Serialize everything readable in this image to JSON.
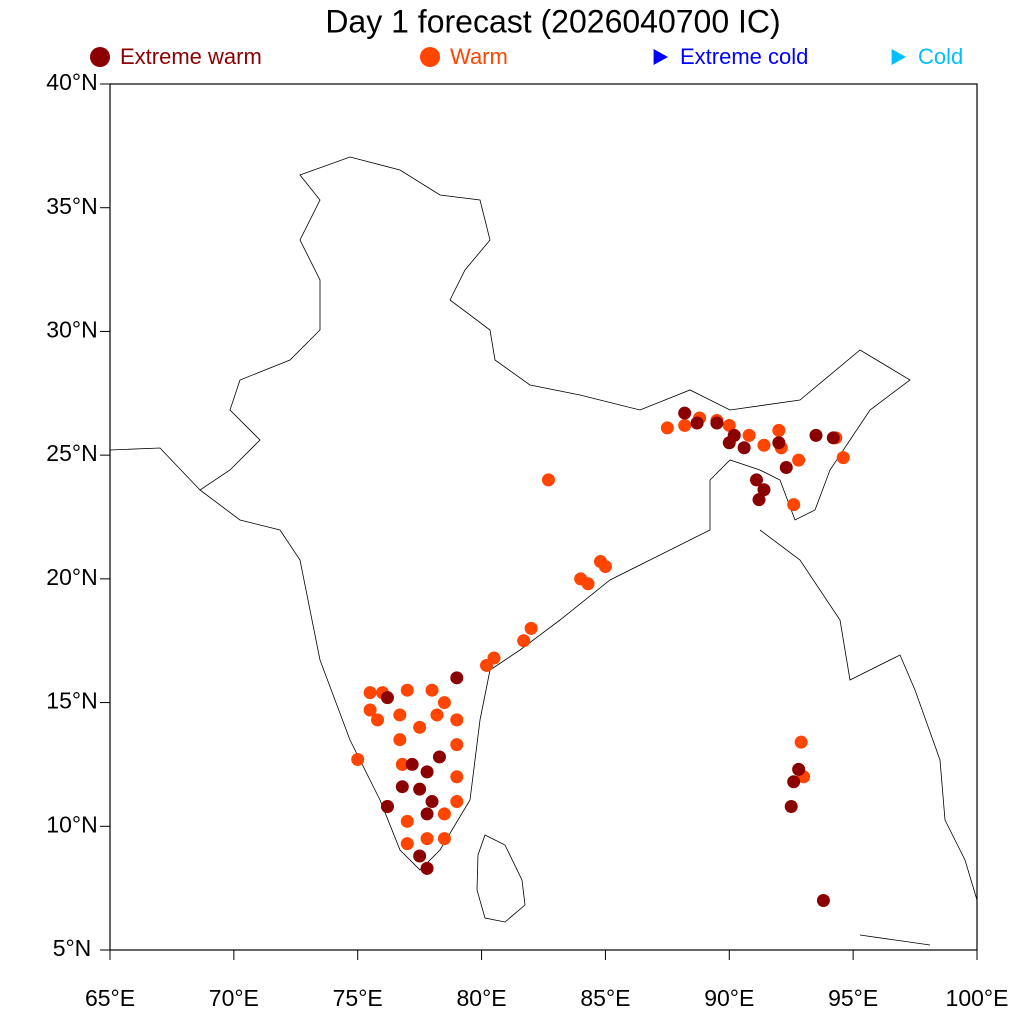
{
  "chart_data": {
    "type": "scatter",
    "title": "Day 1 forecast (2026040700 IC)",
    "xlim": [
      65,
      100
    ],
    "ylim": [
      5,
      40
    ],
    "xticks": [
      {
        "value": 65,
        "label": "65°E"
      },
      {
        "value": 70,
        "label": "70°E"
      },
      {
        "value": 75,
        "label": "75°E"
      },
      {
        "value": 80,
        "label": "80°E"
      },
      {
        "value": 85,
        "label": "85°E"
      },
      {
        "value": 90,
        "label": "90°E"
      },
      {
        "value": 95,
        "label": "95°E"
      },
      {
        "value": 100,
        "label": "100°E"
      }
    ],
    "yticks": [
      {
        "value": 5,
        "label": "5°N"
      },
      {
        "value": 10,
        "label": "10°N"
      },
      {
        "value": 15,
        "label": "15°N"
      },
      {
        "value": 20,
        "label": "20°N"
      },
      {
        "value": 25,
        "label": "25°N"
      },
      {
        "value": 30,
        "label": "30°N"
      },
      {
        "value": 35,
        "label": "35°N"
      },
      {
        "value": 40,
        "label": "40°N"
      }
    ],
    "series": [
      {
        "name": "Extreme warm",
        "color": "#8b0000",
        "marker": "circle",
        "x": [
          88.2,
          88.7,
          89.5,
          90.2,
          90.6,
          91.1,
          91.4,
          91.2,
          92.0,
          92.3,
          93.5,
          94.2,
          90.0,
          79.0,
          76.2,
          77.2,
          77.8,
          78.3,
          77.5,
          78.0,
          77.8,
          76.8,
          77.5,
          77.8,
          76.2,
          92.5,
          93.8,
          92.8,
          92.6
        ],
        "values": [
          26.7,
          26.3,
          26.3,
          25.8,
          25.3,
          24.0,
          23.6,
          23.2,
          25.5,
          24.5,
          25.8,
          25.7,
          25.5,
          16.0,
          15.2,
          12.5,
          12.2,
          12.8,
          11.5,
          11.0,
          10.5,
          11.6,
          8.8,
          8.3,
          10.8,
          10.8,
          7.0,
          12.3,
          11.8
        ]
      },
      {
        "name": "Warm",
        "color": "#ff4500",
        "marker": "circle",
        "x": [
          87.5,
          88.2,
          88.8,
          89.5,
          90.0,
          90.8,
          91.4,
          92.1,
          92.8,
          92.6,
          94.3,
          94.6,
          92.0,
          82.7,
          84.8,
          85.0,
          84.0,
          84.3,
          82.0,
          81.7,
          80.2,
          80.5,
          75.5,
          76.0,
          75.5,
          75.8,
          77.0,
          78.0,
          78.5,
          79.0,
          79.0,
          76.7,
          76.7,
          77.5,
          78.2,
          76.8,
          79.0,
          79.0,
          78.5,
          77.0,
          76.2,
          75.0,
          77.8,
          78.5,
          77.0,
          92.9,
          93.0
        ],
        "values": [
          26.1,
          26.2,
          26.5,
          26.4,
          26.2,
          25.8,
          25.4,
          25.3,
          24.8,
          23.0,
          25.7,
          24.9,
          26.0,
          24.0,
          20.7,
          20.5,
          20.0,
          19.8,
          18.0,
          17.5,
          16.5,
          16.8,
          15.4,
          15.4,
          14.7,
          14.3,
          15.5,
          15.5,
          15.0,
          14.3,
          13.3,
          14.5,
          13.5,
          14.0,
          14.5,
          12.5,
          12.0,
          11.0,
          10.5,
          10.2,
          10.8,
          12.7,
          9.5,
          9.5,
          9.3,
          13.4,
          12.0
        ]
      },
      {
        "name": "Extreme cold",
        "color": "#0000ff",
        "marker": "triangle",
        "x": [],
        "values": []
      },
      {
        "name": "Cold",
        "color": "#00bfff",
        "marker": "triangle",
        "x": [],
        "values": []
      }
    ]
  }
}
